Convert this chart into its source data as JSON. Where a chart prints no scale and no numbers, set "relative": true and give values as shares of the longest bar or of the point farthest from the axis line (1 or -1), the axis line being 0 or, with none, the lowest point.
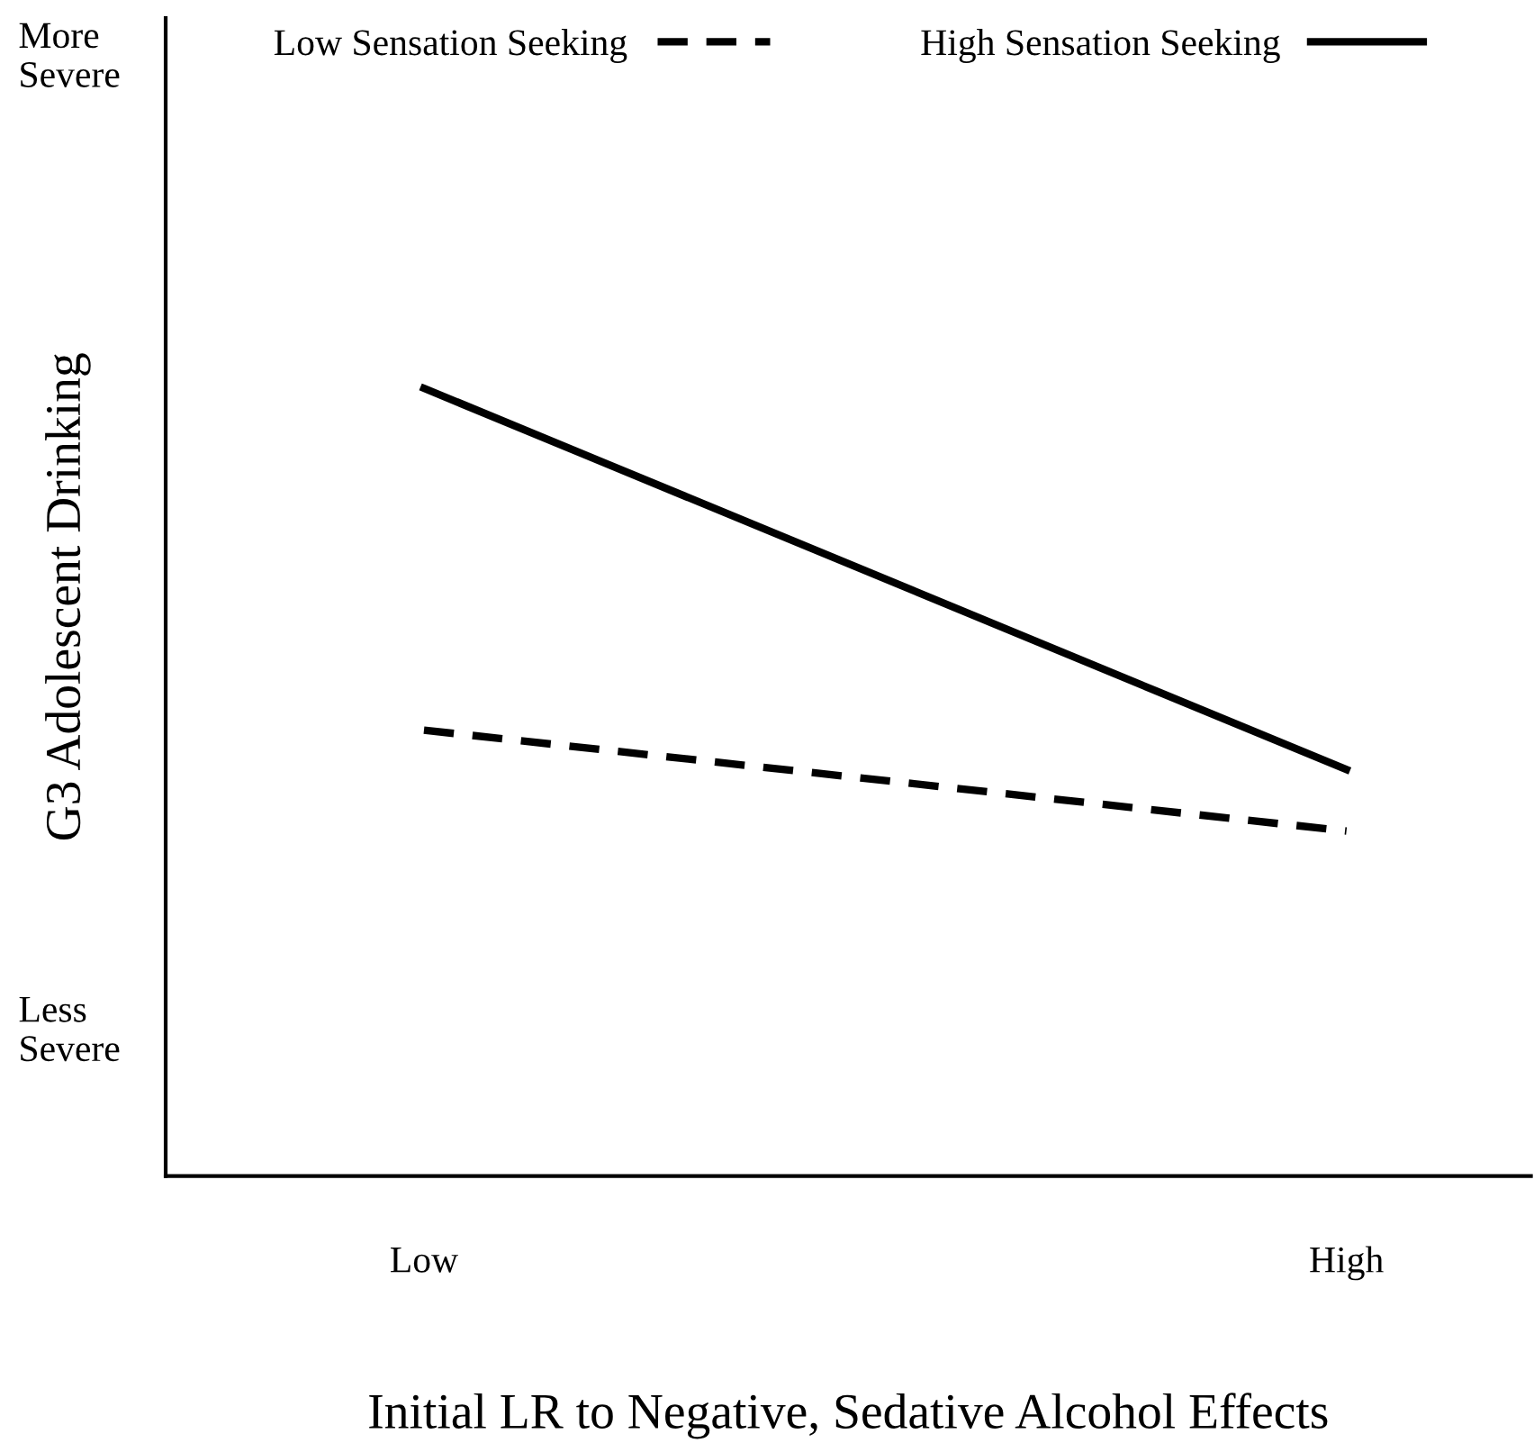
{
  "chart_data": {
    "type": "line",
    "relative": true,
    "xlabel": "Initial LR to Negative, Sedative Alcohol Effects",
    "ylabel": "G3 Adolescent Drinking",
    "categories": [
      "Low",
      "High"
    ],
    "series": [
      {
        "name": "Low Sensation Seeking",
        "color": "#000000",
        "values": [
          0.566,
          0.438
        ],
        "line_style": "dashed"
      },
      {
        "name": "High Sensation Seeking",
        "color": "#000000",
        "values": [
          1,
          0.516
        ],
        "line_style": "solid"
      }
    ],
    "annotations": [
      "More Severe",
      "Less Severe"
    ],
    "legend": "top",
    "grid": false,
    "marker": "none"
  }
}
